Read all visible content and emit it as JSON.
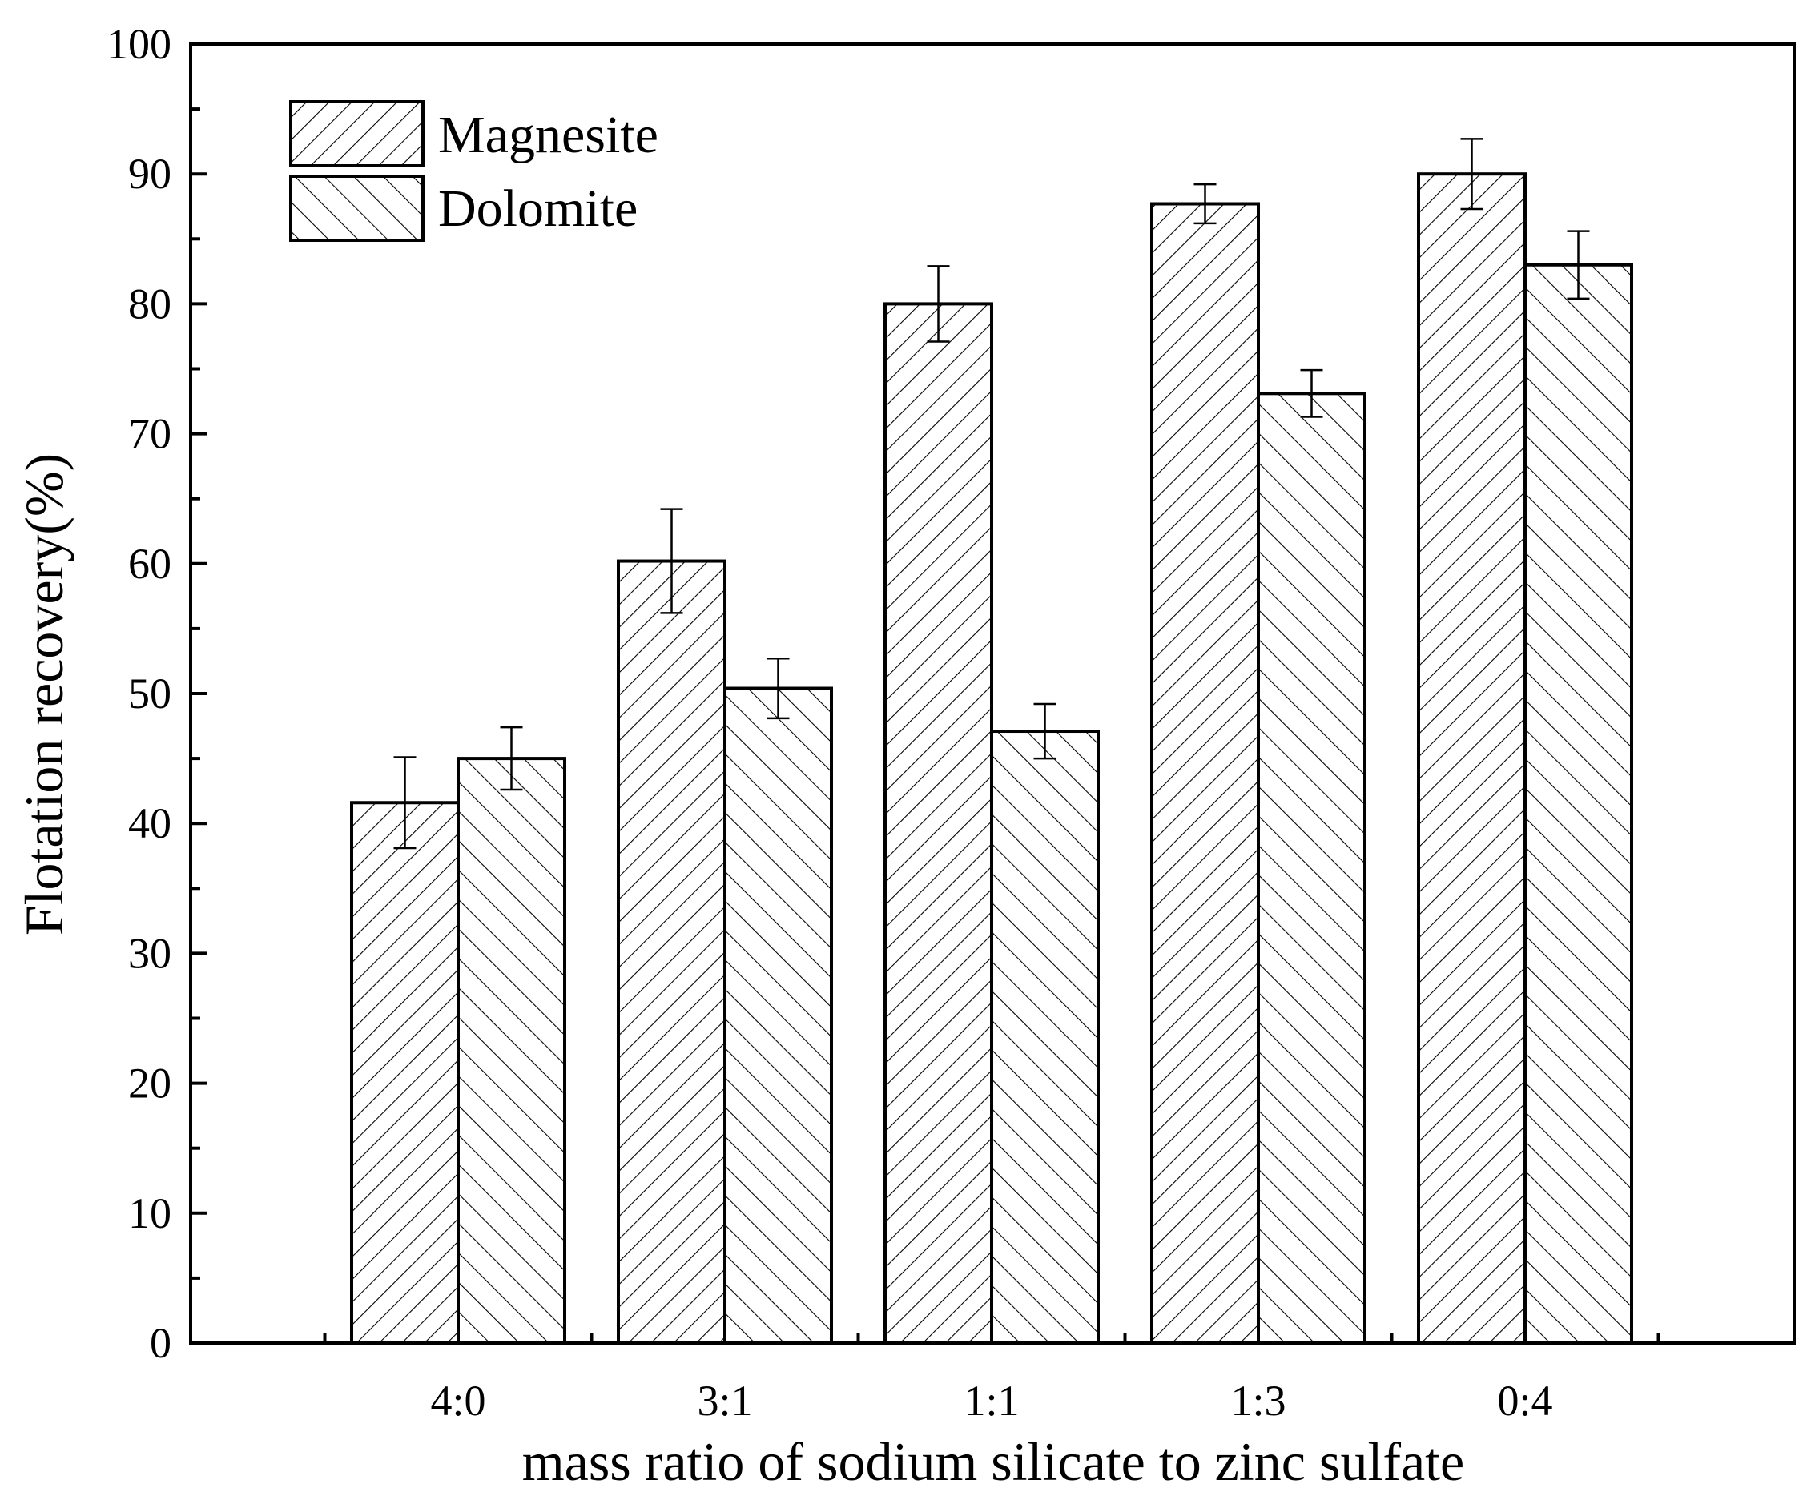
{
  "chart_data": {
    "type": "bar",
    "title": "",
    "xlabel": "mass ratio of sodium silicate to zinc sulfate",
    "ylabel": "Flotation recovery(%)",
    "categories": [
      "4:0",
      "3:1",
      "1:1",
      "1:3",
      "0:4"
    ],
    "series": [
      {
        "name": "Magnesite",
        "pattern": "hatch-forward",
        "values": [
          41.6,
          60.2,
          80.0,
          87.7,
          90.0
        ],
        "errors": [
          3.5,
          4.0,
          2.9,
          1.5,
          2.7
        ]
      },
      {
        "name": "Dolomite",
        "pattern": "hatch-backward",
        "values": [
          45.0,
          50.4,
          47.1,
          73.1,
          83.0
        ],
        "errors": [
          2.4,
          2.3,
          2.1,
          1.8,
          2.6
        ]
      }
    ],
    "ylim": [
      0,
      100
    ],
    "yticks": [
      "0",
      "10",
      "20",
      "30",
      "40",
      "50",
      "60",
      "70",
      "80",
      "90",
      "100"
    ],
    "grid": false,
    "legend_position": "top-left"
  },
  "colors": {
    "ink": "#000000",
    "fill": "#ffffff"
  }
}
